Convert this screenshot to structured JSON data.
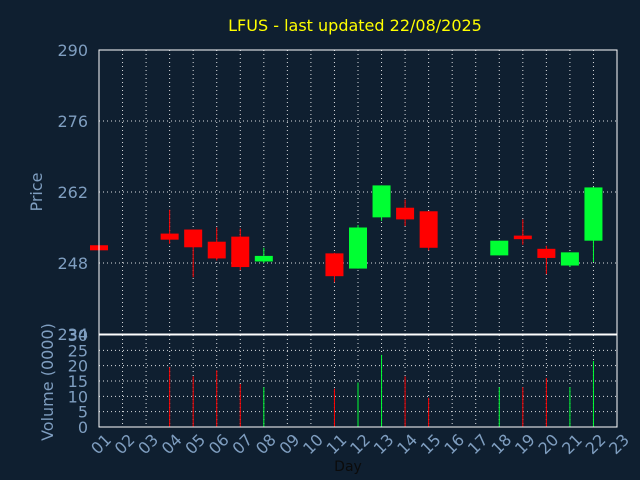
{
  "colors": {
    "background": "#0f1f30",
    "up": "#00ff33",
    "down": "#ff0000",
    "grid": "#ffffff",
    "title": "#ffff00",
    "ticks": "#7f9ec0"
  },
  "chart_data": [
    {
      "type": "candlestick",
      "title": "LFUS - last updated 22/08/2025",
      "ylabel": "Price",
      "ylim": [
        234,
        290
      ],
      "yticks": [
        234,
        248,
        262,
        276,
        290
      ],
      "grid": true,
      "candles": [
        {
          "day": "01",
          "open": 251.5,
          "high": 251.8,
          "low": 250.2,
          "close": 250.5
        },
        {
          "day": "04",
          "open": 253.8,
          "high": 258.5,
          "low": 251.8,
          "close": 252.6
        },
        {
          "day": "05",
          "open": 254.6,
          "high": 254.6,
          "low": 245.2,
          "close": 251.1
        },
        {
          "day": "06",
          "open": 252.2,
          "high": 255.0,
          "low": 248.5,
          "close": 248.9
        },
        {
          "day": "07",
          "open": 253.2,
          "high": 254.8,
          "low": 246.6,
          "close": 247.2
        },
        {
          "day": "08",
          "open": 248.3,
          "high": 251.0,
          "low": 248.0,
          "close": 249.4
        },
        {
          "day": "11",
          "open": 249.9,
          "high": 250.0,
          "low": 244.2,
          "close": 245.4
        },
        {
          "day": "12",
          "open": 246.9,
          "high": 255.5,
          "low": 246.9,
          "close": 255.0
        },
        {
          "day": "13",
          "open": 257.0,
          "high": 263.3,
          "low": 256.3,
          "close": 263.3
        },
        {
          "day": "14",
          "open": 258.9,
          "high": 260.5,
          "low": 255.3,
          "close": 256.6
        },
        {
          "day": "15",
          "open": 258.2,
          "high": 258.2,
          "low": 250.5,
          "close": 251.0
        },
        {
          "day": "18",
          "open": 249.5,
          "high": 252.4,
          "low": 249.5,
          "close": 252.4
        },
        {
          "day": "19",
          "open": 253.4,
          "high": 256.6,
          "low": 251.6,
          "close": 252.7
        },
        {
          "day": "20",
          "open": 250.8,
          "high": 251.4,
          "low": 245.8,
          "close": 249.0
        },
        {
          "day": "21",
          "open": 247.5,
          "high": 250.1,
          "low": 247.2,
          "close": 250.1
        },
        {
          "day": "22",
          "open": 252.4,
          "high": 263.0,
          "low": 248.2,
          "close": 262.9
        }
      ]
    },
    {
      "type": "bar",
      "ylabel": "Volume (0000)",
      "xlabel": "Day",
      "ylim": [
        0,
        30
      ],
      "yticks": [
        0,
        5,
        10,
        15,
        20,
        25,
        30
      ],
      "categories": [
        "01",
        "02",
        "03",
        "04",
        "05",
        "06",
        "07",
        "08",
        "09",
        "10",
        "11",
        "12",
        "13",
        "14",
        "15",
        "16",
        "17",
        "18",
        "19",
        "20",
        "21",
        "22",
        "23"
      ],
      "volumes": [
        {
          "day": "04",
          "value": 19.5,
          "direction": "down"
        },
        {
          "day": "05",
          "value": 16.5,
          "direction": "down"
        },
        {
          "day": "06",
          "value": 18.5,
          "direction": "down"
        },
        {
          "day": "07",
          "value": 14.0,
          "direction": "down"
        },
        {
          "day": "08",
          "value": 13.0,
          "direction": "up"
        },
        {
          "day": "11",
          "value": 12.5,
          "direction": "down"
        },
        {
          "day": "12",
          "value": 14.5,
          "direction": "up"
        },
        {
          "day": "13",
          "value": 23.5,
          "direction": "up"
        },
        {
          "day": "14",
          "value": 16.5,
          "direction": "down"
        },
        {
          "day": "15",
          "value": 9.5,
          "direction": "down"
        },
        {
          "day": "18",
          "value": 13.0,
          "direction": "up"
        },
        {
          "day": "19",
          "value": 13.0,
          "direction": "down"
        },
        {
          "day": "20",
          "value": 16.0,
          "direction": "down"
        },
        {
          "day": "21",
          "value": 13.0,
          "direction": "up"
        },
        {
          "day": "22",
          "value": 21.5,
          "direction": "up"
        }
      ]
    }
  ]
}
